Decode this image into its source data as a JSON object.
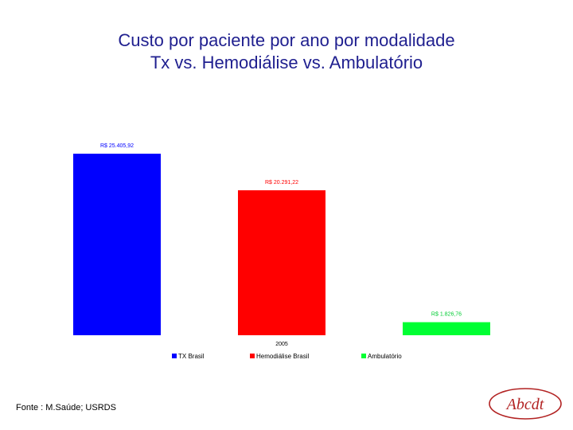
{
  "title": {
    "line1": "Custo por paciente por ano por modalidade",
    "line2": "Tx vs. Hemodiálise vs. Ambulatório"
  },
  "chart_data": {
    "type": "bar",
    "categories": [
      "2005"
    ],
    "series": [
      {
        "name": "TX Brasil",
        "values": [
          25405.92
        ],
        "label": "R$ 25.405,92",
        "color": "#0000ff"
      },
      {
        "name": "Hemodiálise Brasil",
        "values": [
          20291.22
        ],
        "label": "R$ 20.291,22",
        "color": "#ff0000"
      },
      {
        "name": "Ambulatório",
        "values": [
          1826.76
        ],
        "label": "R$ 1.826,76",
        "color": "#00ff33"
      }
    ],
    "title": "",
    "xlabel": "",
    "ylabel": "",
    "ylim": [
      0,
      25405.92
    ],
    "grid": false,
    "legend": "bottom"
  },
  "source": "Fonte : M.Saúde; USRDS",
  "logo": {
    "text": "Abcdt",
    "color": "#b22222"
  }
}
